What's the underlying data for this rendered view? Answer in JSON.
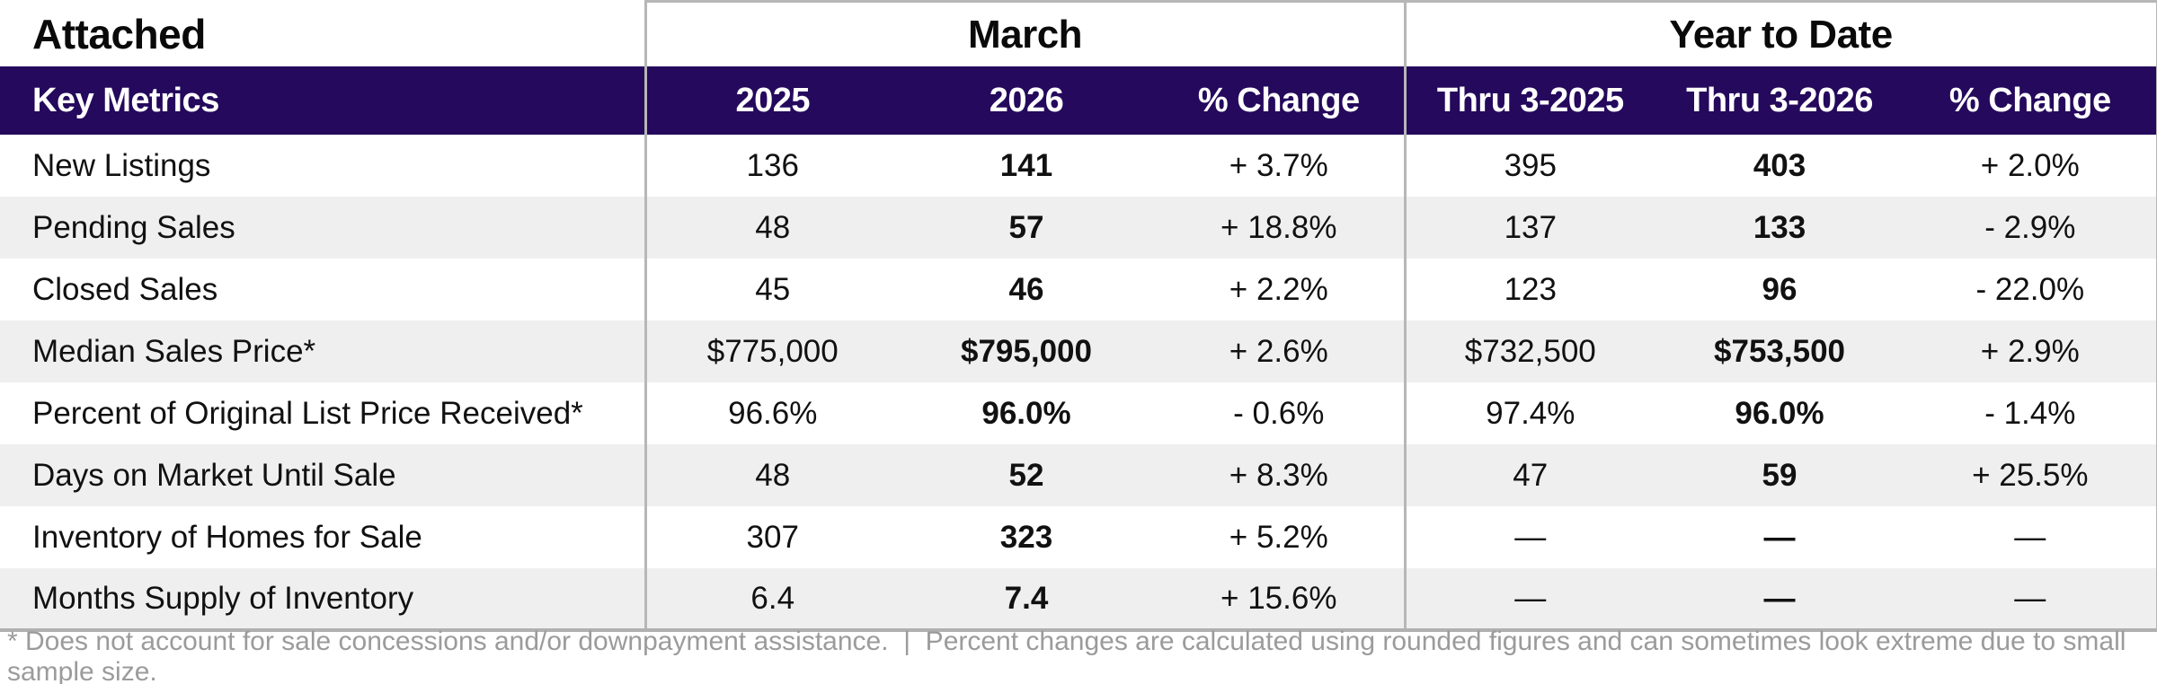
{
  "table": {
    "title": "Attached",
    "key_metrics_label": "Key Metrics",
    "groups": [
      {
        "label": "March",
        "columns": [
          "2025",
          "2026",
          "% Change"
        ]
      },
      {
        "label": "Year to Date",
        "columns": [
          "Thru 3-2025",
          "Thru 3-2026",
          "% Change"
        ]
      }
    ],
    "rows": [
      {
        "metric": "New Listings",
        "march": [
          "136",
          "141",
          "+ 3.7%"
        ],
        "ytd": [
          "395",
          "403",
          "+ 2.0%"
        ]
      },
      {
        "metric": "Pending Sales",
        "march": [
          "48",
          "57",
          "+ 18.8%"
        ],
        "ytd": [
          "137",
          "133",
          "- 2.9%"
        ]
      },
      {
        "metric": "Closed Sales",
        "march": [
          "45",
          "46",
          "+ 2.2%"
        ],
        "ytd": [
          "123",
          "96",
          "- 22.0%"
        ]
      },
      {
        "metric": "Median Sales Price*",
        "march": [
          "$775,000",
          "$795,000",
          "+ 2.6%"
        ],
        "ytd": [
          "$732,500",
          "$753,500",
          "+ 2.9%"
        ]
      },
      {
        "metric": "Percent of Original List Price Received*",
        "march": [
          "96.6%",
          "96.0%",
          "- 0.6%"
        ],
        "ytd": [
          "97.4%",
          "96.0%",
          "- 1.4%"
        ]
      },
      {
        "metric": "Days on Market Until Sale",
        "march": [
          "48",
          "52",
          "+ 8.3%"
        ],
        "ytd": [
          "47",
          "59",
          "+ 25.5%"
        ]
      },
      {
        "metric": "Inventory of Homes for Sale",
        "march": [
          "307",
          "323",
          "+ 5.2%"
        ],
        "ytd": [
          "—",
          "—",
          "—"
        ]
      },
      {
        "metric": "Months Supply of Inventory",
        "march": [
          "6.4",
          "7.4",
          "+ 15.6%"
        ],
        "ytd": [
          "—",
          "—",
          "—"
        ]
      }
    ],
    "footnote": "* Does not account for sale concessions and/or downpayment assistance.  |  Percent changes are calculated using rounded figures and can sometimes look extreme due to small sample size.",
    "colors": {
      "header_band_bg": "#25095c",
      "header_band_text": "#ffffff",
      "row_stripe": "#efefef",
      "border_gray": "#b7b7b7",
      "footnote_text": "#9b9b9b",
      "body_text": "#111111"
    }
  }
}
